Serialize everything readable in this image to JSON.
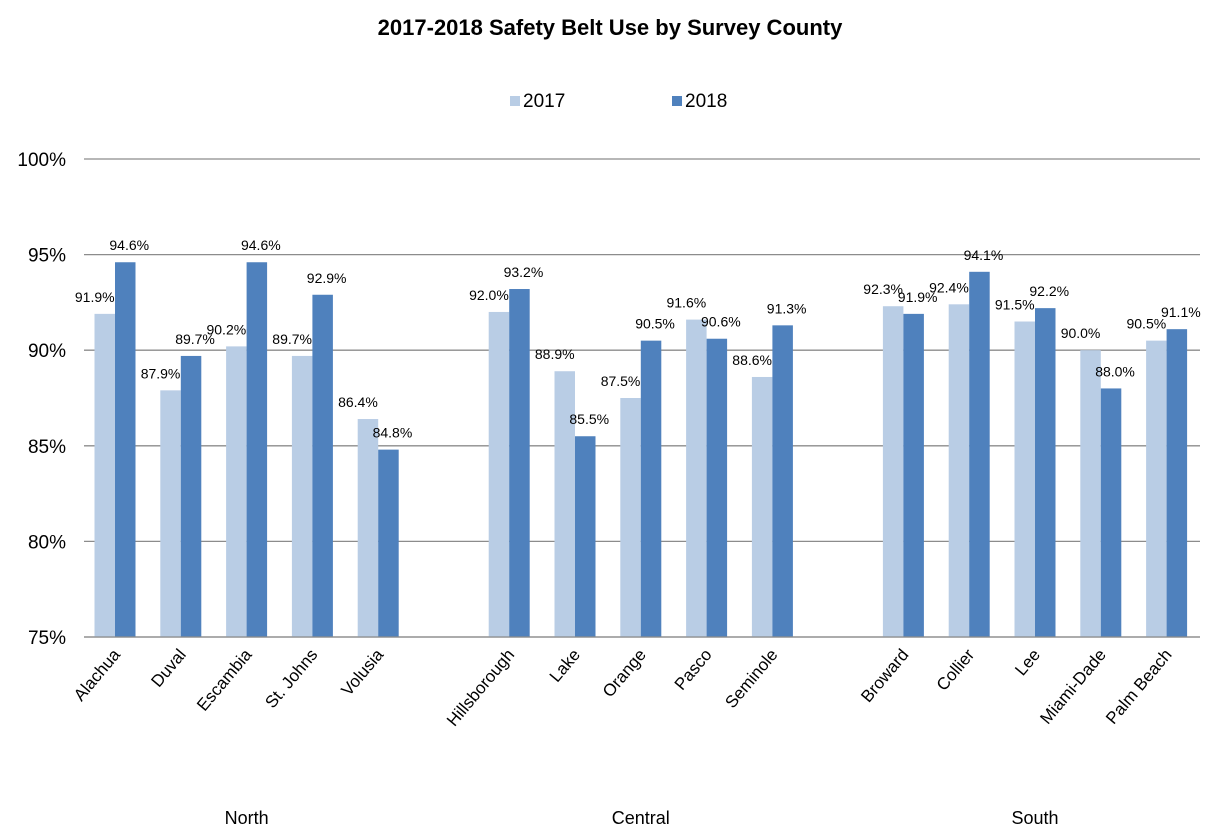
{
  "chart_data": {
    "type": "bar",
    "title": "2017-2018 Safety Belt Use by Survey County",
    "xlabel": "",
    "ylabel": "",
    "ylim": [
      75,
      100
    ],
    "yticks": [
      "75%",
      "80%",
      "85%",
      "90%",
      "95%",
      "100%"
    ],
    "grid": true,
    "legend_position": "top",
    "groups": [
      {
        "name": "North",
        "categories": [
          "Alachua",
          "Duval",
          "Escambia",
          "St. Johns",
          "Volusia"
        ]
      },
      {
        "name": "Central",
        "categories": [
          "Hillsborough",
          "Lake",
          "Orange",
          "Pasco",
          "Seminole"
        ]
      },
      {
        "name": "South",
        "categories": [
          "Broward",
          "Collier",
          "Lee",
          "Miami-Dade",
          "Palm Beach"
        ]
      }
    ],
    "categories": [
      "Alachua",
      "Duval",
      "Escambia",
      "St. Johns",
      "Volusia",
      "Hillsborough",
      "Lake",
      "Orange",
      "Pasco",
      "Seminole",
      "Broward",
      "Collier",
      "Lee",
      "Miami-Dade",
      "Palm Beach"
    ],
    "series": [
      {
        "name": "2017",
        "color": "#b9cde5",
        "values": [
          91.9,
          87.9,
          90.2,
          89.7,
          86.4,
          92.0,
          88.9,
          87.5,
          91.6,
          88.6,
          92.3,
          92.4,
          91.5,
          90.0,
          90.5
        ],
        "labels": [
          "91.9%",
          "87.9%",
          "90.2%",
          "89.7%",
          "86.4%",
          "92.0%",
          "88.9%",
          "87.5%",
          "91.6%",
          "88.6%",
          "92.3%",
          "92.4%",
          "91.5%",
          "90.0%",
          "90.5%"
        ]
      },
      {
        "name": "2018",
        "color": "#4f81bd",
        "values": [
          94.6,
          89.7,
          94.6,
          92.9,
          84.8,
          93.2,
          85.5,
          90.5,
          90.6,
          91.3,
          91.9,
          94.1,
          92.2,
          88.0,
          91.1
        ],
        "labels": [
          "94.6%",
          "89.7%",
          "94.6%",
          "92.9%",
          "84.8%",
          "93.2%",
          "85.5%",
          "90.5%",
          "90.6%",
          "91.3%",
          "91.9%",
          "94.1%",
          "92.2%",
          "88.0%",
          "91.1%"
        ]
      }
    ]
  }
}
